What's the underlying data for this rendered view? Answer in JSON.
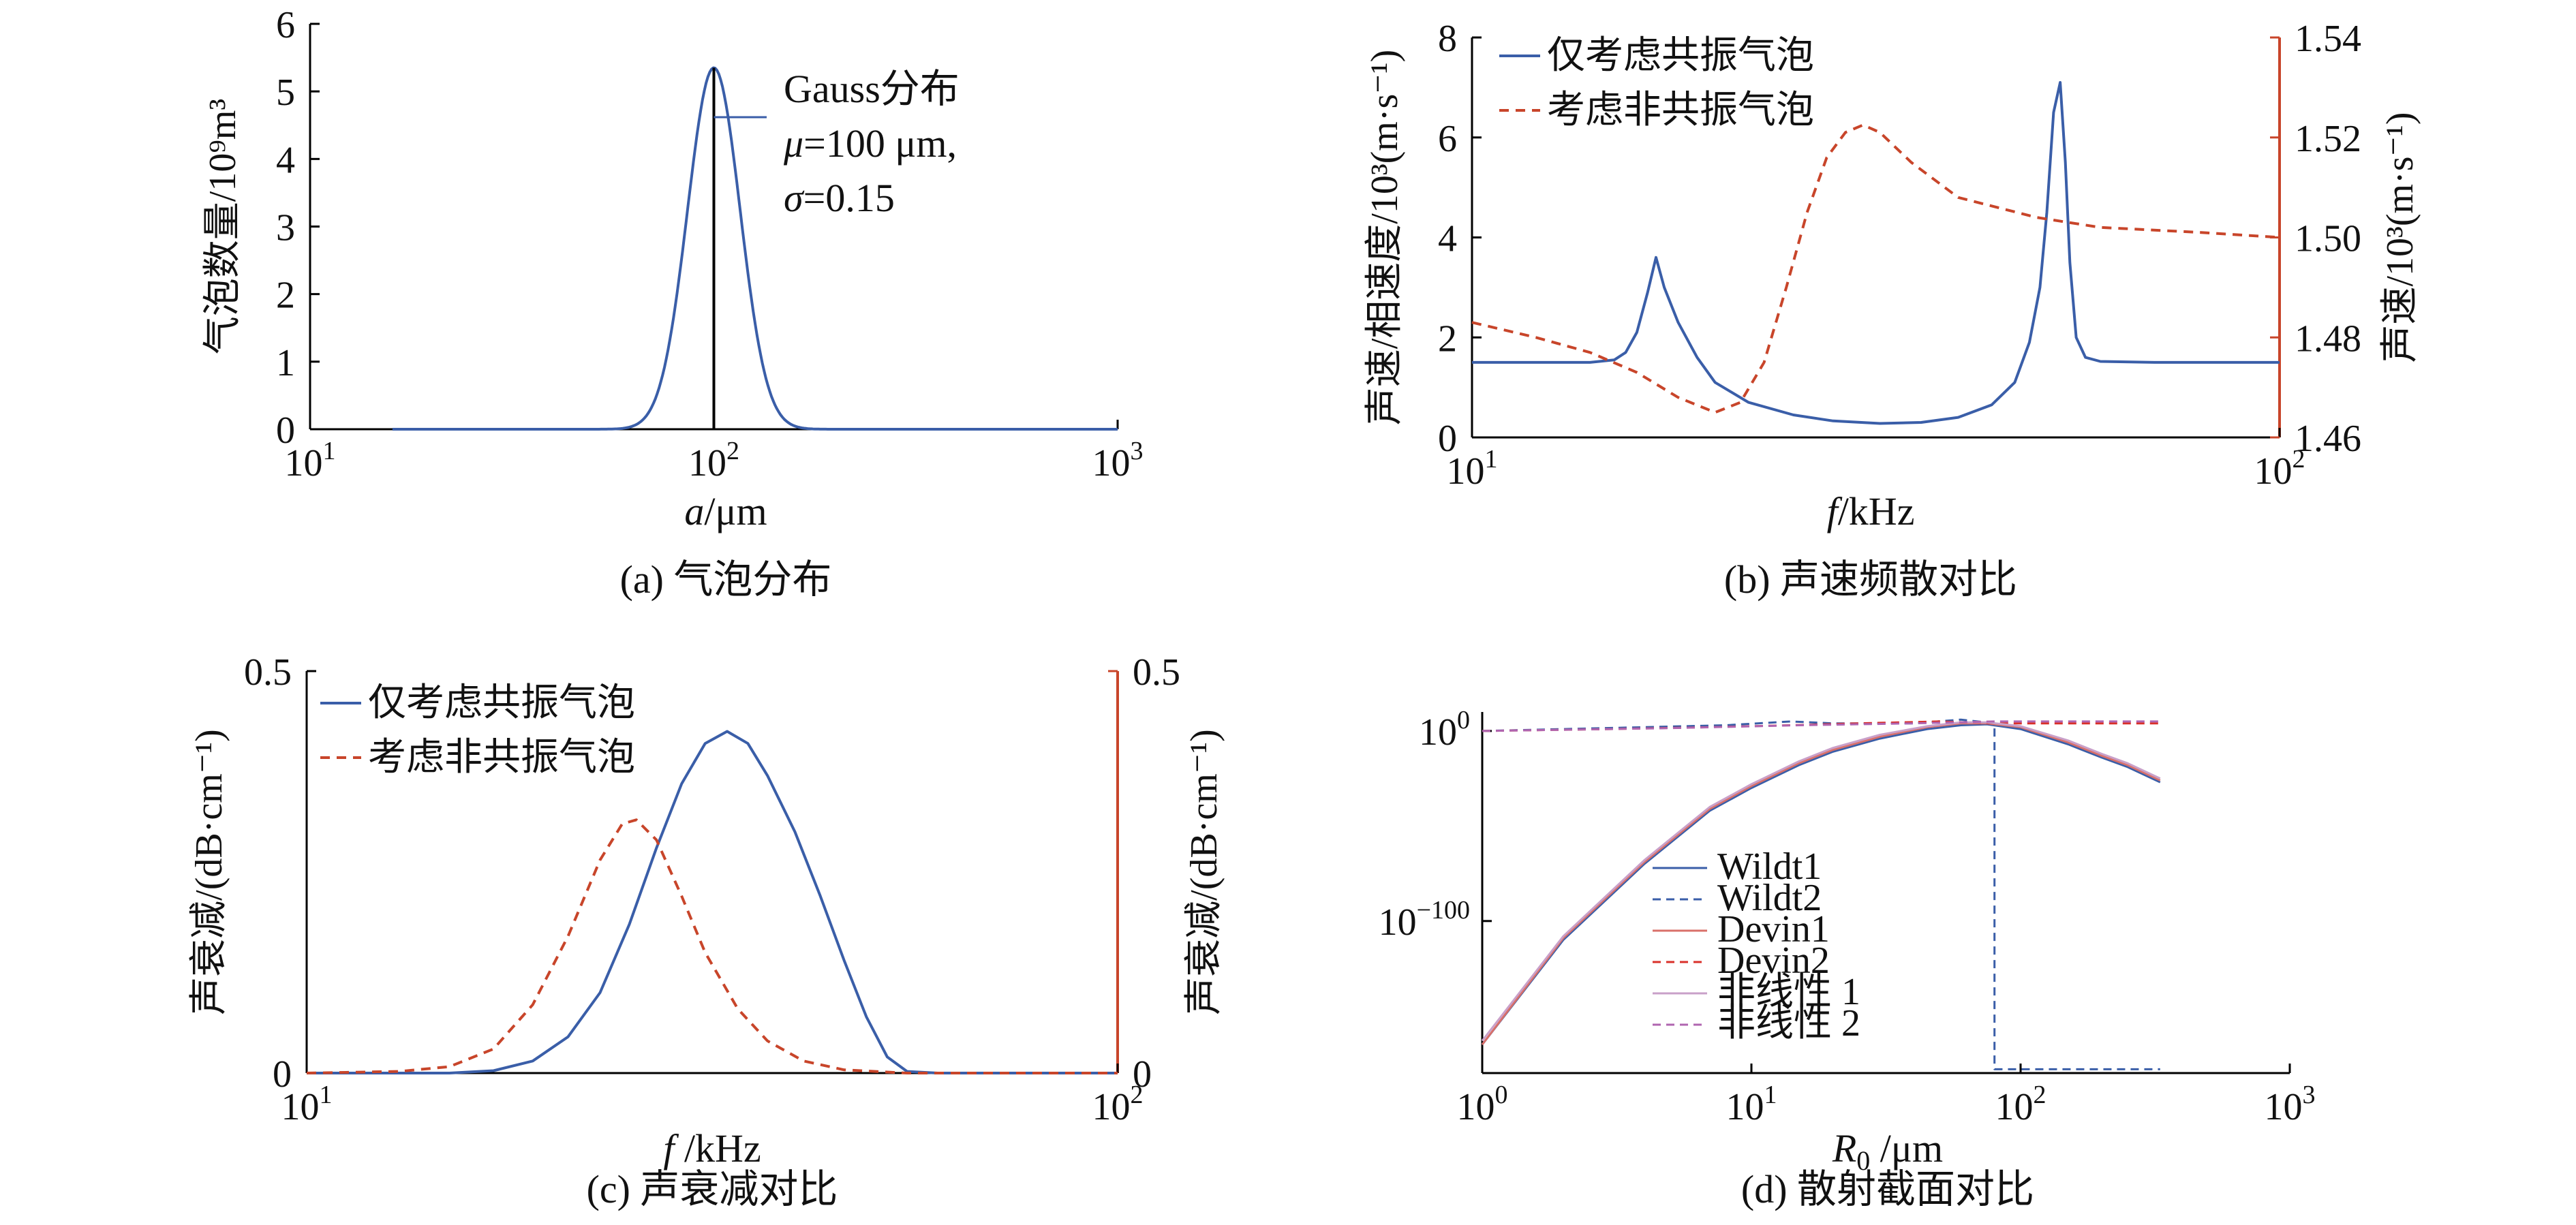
{
  "chart_data": [
    {
      "id": "a",
      "type": "line",
      "caption": "(a) 气泡分布",
      "xlabel_italic": "a",
      "xlabel_rest": "/μm",
      "ylabel": "气泡数量/10⁹m³",
      "xscale": "log",
      "xlim": [
        10,
        1000
      ],
      "ylim": [
        0,
        6
      ],
      "xticks": [
        {
          "v": 10,
          "base": "10",
          "exp": "1"
        },
        {
          "v": 100,
          "base": "10",
          "exp": "2"
        },
        {
          "v": 1000,
          "base": "10",
          "exp": "3"
        }
      ],
      "yticks": [
        "0",
        "1",
        "2",
        "3",
        "4",
        "5",
        "6"
      ],
      "series": [
        {
          "name": "Gauss分布",
          "color": "#3a5ea8",
          "dash": "",
          "shape": "gauss",
          "mu": 100,
          "sigma": 0.15,
          "peak": 5.35,
          "xrange": [
            16,
            1000
          ]
        }
      ],
      "vline": {
        "x": 100,
        "y": 5.35
      },
      "annotation": {
        "line1": "Gauss分布",
        "line2_sym": "μ",
        "line2_rest": "=100 μm,",
        "line3_sym": "σ",
        "line3_rest": "=0.15"
      }
    },
    {
      "id": "b",
      "type": "line",
      "caption": "(b) 声速频散对比",
      "xlabel_italic": "f",
      "xlabel_rest": "/kHz",
      "ylabel": "声速/相速度/10³(m·s⁻¹)",
      "ylabel_right": "声速/10³(m·s⁻¹)",
      "xscale": "log",
      "xlim": [
        10,
        100
      ],
      "ylim": [
        0,
        8
      ],
      "ylim_right": [
        1.46,
        1.54
      ],
      "xticks": [
        {
          "v": 10,
          "base": "10",
          "exp": "1"
        },
        {
          "v": 100,
          "base": "10",
          "exp": "2"
        }
      ],
      "yticks": [
        "0",
        "2",
        "4",
        "6",
        "8"
      ],
      "yticks_right": [
        "1.46",
        "1.48",
        "1.50",
        "1.52",
        "1.54"
      ],
      "right_axis_color": "#c8452a",
      "series": [
        {
          "name": "仅考虑共振气泡",
          "color": "#3a5ea8",
          "dash": "",
          "axis": "left",
          "points": [
            [
              10,
              1.5
            ],
            [
              12,
              1.5
            ],
            [
              14,
              1.5
            ],
            [
              15,
              1.55
            ],
            [
              15.5,
              1.7
            ],
            [
              16,
              2.1
            ],
            [
              16.5,
              2.9
            ],
            [
              16.9,
              3.6
            ],
            [
              17.3,
              3.0
            ],
            [
              18,
              2.3
            ],
            [
              19,
              1.6
            ],
            [
              20,
              1.1
            ],
            [
              22,
              0.7
            ],
            [
              25,
              0.45
            ],
            [
              28,
              0.33
            ],
            [
              32,
              0.28
            ],
            [
              36,
              0.3
            ],
            [
              40,
              0.4
            ],
            [
              44,
              0.65
            ],
            [
              47,
              1.1
            ],
            [
              49,
              1.9
            ],
            [
              50.5,
              3.0
            ],
            [
              51.5,
              4.5
            ],
            [
              52.5,
              6.5
            ],
            [
              53.5,
              7.1
            ],
            [
              54.3,
              5.5
            ],
            [
              55,
              3.5
            ],
            [
              56,
              2.0
            ],
            [
              57.5,
              1.6
            ],
            [
              60,
              1.52
            ],
            [
              70,
              1.5
            ],
            [
              100,
              1.5
            ]
          ]
        },
        {
          "name": "考虑非共振气泡",
          "color": "#c8452a",
          "dash": "14,10",
          "axis": "right",
          "points": [
            [
              10,
              1.483
            ],
            [
              12,
              1.48
            ],
            [
              14,
              1.477
            ],
            [
              16,
              1.473
            ],
            [
              18,
              1.468
            ],
            [
              20,
              1.465
            ],
            [
              21.5,
              1.467
            ],
            [
              23,
              1.475
            ],
            [
              24.5,
              1.49
            ],
            [
              26,
              1.505
            ],
            [
              27.5,
              1.516
            ],
            [
              29,
              1.521
            ],
            [
              30.5,
              1.5225
            ],
            [
              32,
              1.521
            ],
            [
              35,
              1.515
            ],
            [
              40,
              1.508
            ],
            [
              50,
              1.504
            ],
            [
              60,
              1.502
            ],
            [
              80,
              1.501
            ],
            [
              100,
              1.5
            ]
          ]
        }
      ]
    },
    {
      "id": "c",
      "type": "line",
      "caption": "(c) 声衰减对比",
      "xlabel_italic": "f",
      "xlabel_rest": " /kHz",
      "ylabel": "声衰减/(dB·cm⁻¹)",
      "ylabel_right": "声衰减/(dB·cm⁻¹)",
      "xscale": "log",
      "xlim": [
        10,
        100
      ],
      "ylim": [
        0,
        0.5
      ],
      "ylim_right": [
        0,
        0.5
      ],
      "xticks": [
        {
          "v": 10,
          "base": "10",
          "exp": "1"
        },
        {
          "v": 100,
          "base": "10",
          "exp": "2"
        }
      ],
      "yticks": [
        "0",
        "0.5"
      ],
      "yticks_right": [
        "0",
        "0.5"
      ],
      "right_axis_color": "#c8452a",
      "series": [
        {
          "name": "仅考虑共振气泡",
          "color": "#3a5ea8",
          "dash": "",
          "axis": "left",
          "points": [
            [
              10,
              0
            ],
            [
              15,
              0
            ],
            [
              17,
              0.003
            ],
            [
              19,
              0.015
            ],
            [
              21,
              0.045
            ],
            [
              23,
              0.1
            ],
            [
              25,
              0.185
            ],
            [
              27,
              0.28
            ],
            [
              29,
              0.36
            ],
            [
              31,
              0.41
            ],
            [
              33,
              0.425
            ],
            [
              35,
              0.41
            ],
            [
              37,
              0.37
            ],
            [
              40,
              0.3
            ],
            [
              43,
              0.22
            ],
            [
              46,
              0.14
            ],
            [
              49,
              0.07
            ],
            [
              52,
              0.02
            ],
            [
              55,
              0.002
            ],
            [
              60,
              0
            ],
            [
              100,
              0
            ]
          ]
        },
        {
          "name": "考虑非共振气泡",
          "color": "#c8452a",
          "dash": "14,10",
          "axis": "right",
          "points": [
            [
              10,
              0
            ],
            [
              13,
              0.002
            ],
            [
              15,
              0.008
            ],
            [
              17,
              0.03
            ],
            [
              19,
              0.085
            ],
            [
              21,
              0.17
            ],
            [
              23,
              0.265
            ],
            [
              24.5,
              0.31
            ],
            [
              25.5,
              0.315
            ],
            [
              27,
              0.29
            ],
            [
              29,
              0.22
            ],
            [
              31,
              0.15
            ],
            [
              34,
              0.08
            ],
            [
              37,
              0.04
            ],
            [
              41,
              0.015
            ],
            [
              46,
              0.004
            ],
            [
              55,
              0
            ],
            [
              100,
              0
            ]
          ]
        }
      ]
    },
    {
      "id": "d",
      "type": "line",
      "caption": "(d) 散射截面对比",
      "xlabel_italic": "R",
      "xlabel_sub": "0",
      "xlabel_rest": " /μm",
      "xscale": "log",
      "yscale": "log",
      "xlim": [
        1,
        1000
      ],
      "ylim_exp": [
        -180,
        10
      ],
      "xticks": [
        {
          "v": 1,
          "base": "10",
          "exp": "0"
        },
        {
          "v": 10,
          "base": "10",
          "exp": "1"
        },
        {
          "v": 100,
          "base": "10",
          "exp": "2"
        },
        {
          "v": 1000,
          "base": "10",
          "exp": "3"
        }
      ],
      "yticks": [
        {
          "e": 0,
          "base": "10",
          "exp": "0"
        },
        {
          "e": -100,
          "base": "10",
          "exp": "−100"
        }
      ],
      "series": [
        {
          "name": "Wildt1",
          "color": "#3a5ea8",
          "dash": "",
          "points": [
            [
              1,
              -165
            ],
            [
              2,
              -110
            ],
            [
              4,
              -70
            ],
            [
              7,
              -42
            ],
            [
              10,
              -30
            ],
            [
              15,
              -18
            ],
            [
              20,
              -11
            ],
            [
              30,
              -4
            ],
            [
              45,
              1
            ],
            [
              60,
              3
            ],
            [
              75,
              3.5
            ],
            [
              100,
              1
            ],
            [
              150,
              -7
            ],
            [
              200,
              -14
            ],
            [
              250,
              -19
            ],
            [
              330,
              -27
            ]
          ]
        },
        {
          "name": "Wildt2",
          "color": "#3a5ea8",
          "dash": "12,8",
          "points": [
            [
              1,
              0
            ],
            [
              2,
              1
            ],
            [
              4,
              2
            ],
            [
              8,
              3
            ],
            [
              14,
              5
            ],
            [
              20,
              4
            ],
            [
              40,
              4
            ],
            [
              60,
              6
            ],
            [
              80,
              4
            ],
            [
              80,
              -178
            ],
            [
              150,
              -178
            ],
            [
              330,
              -178
            ]
          ]
        },
        {
          "name": "Devin1",
          "color": "#d9706a",
          "dash": "",
          "points": [
            [
              1,
              -165
            ],
            [
              2,
              -109
            ],
            [
              4,
              -69
            ],
            [
              7,
              -41
            ],
            [
              10,
              -29
            ],
            [
              15,
              -17
            ],
            [
              20,
              -10
            ],
            [
              30,
              -3
            ],
            [
              45,
              2
            ],
            [
              60,
              4
            ],
            [
              75,
              4
            ],
            [
              100,
              2
            ],
            [
              150,
              -6
            ],
            [
              200,
              -13
            ],
            [
              250,
              -18
            ],
            [
              330,
              -26
            ]
          ]
        },
        {
          "name": "Devin2",
          "color": "#d9302a",
          "dash": "12,8",
          "points": [
            [
              1,
              0
            ],
            [
              3,
              1
            ],
            [
              7,
              2
            ],
            [
              14,
              3
            ],
            [
              25,
              4
            ],
            [
              50,
              5
            ],
            [
              80,
              4
            ],
            [
              150,
              4
            ],
            [
              330,
              4
            ]
          ]
        },
        {
          "name": "非线性 1",
          "color": "#c9a0c9",
          "dash": "",
          "points": [
            [
              1,
              -163
            ],
            [
              2,
              -108
            ],
            [
              4,
              -68
            ],
            [
              7,
              -40
            ],
            [
              10,
              -28
            ],
            [
              15,
              -16
            ],
            [
              20,
              -9
            ],
            [
              30,
              -2
            ],
            [
              45,
              2.5
            ],
            [
              60,
              4.5
            ],
            [
              75,
              4.5
            ],
            [
              100,
              2.5
            ],
            [
              150,
              -5
            ],
            [
              200,
              -12
            ],
            [
              250,
              -17
            ],
            [
              330,
              -25
            ]
          ]
        },
        {
          "name": "非线性 2",
          "color": "#b065b0",
          "dash": "12,8",
          "points": [
            [
              1,
              0
            ],
            [
              5,
              1.5
            ],
            [
              15,
              3
            ],
            [
              40,
              4
            ],
            [
              80,
              5
            ],
            [
              150,
              5
            ],
            [
              330,
              5
            ]
          ]
        }
      ]
    }
  ]
}
